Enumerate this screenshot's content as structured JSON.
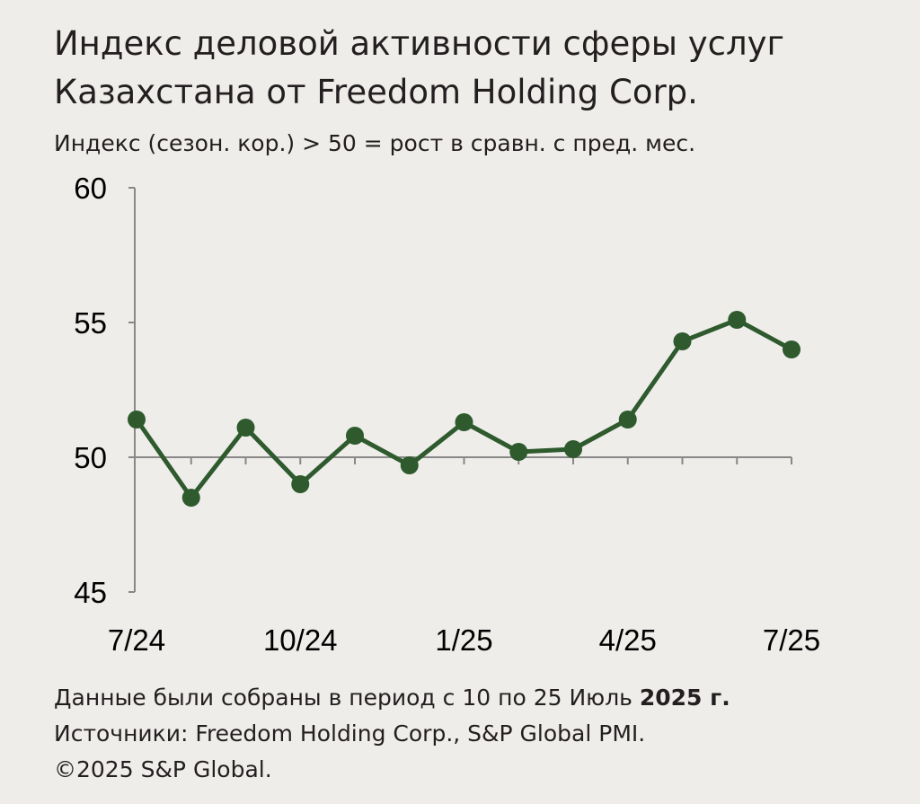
{
  "header": {
    "title_line1": "Индекс деловой активности сферы услуг",
    "title_line2": "Казахстана от Freedom Holding Corp.",
    "subtitle": "Индекс (сезон. кор.) > 50 = рост в сравн. с пред. мес."
  },
  "footer": {
    "note_text": "Данные были собраны в период с 10 по 25 Июль ",
    "note_bold": "2025 г.",
    "sources": "Источники: Freedom Holding Corp., S&P Global PMI.",
    "copyright": "©2025 S&P Global."
  },
  "colors": {
    "line": "#2e5a2e",
    "axis": "#888888",
    "background": "#efedea"
  },
  "chart_data": {
    "type": "line",
    "title": "Индекс деловой активности сферы услуг Казахстана от Freedom Holding Corp.",
    "subtitle": "Индекс (сезон. кор.) > 50 = рост в сравн. с пред. мес.",
    "categories": [
      "7/24",
      "8/24",
      "9/24",
      "10/24",
      "11/24",
      "12/24",
      "1/25",
      "2/25",
      "3/25",
      "4/25",
      "5/25",
      "6/25",
      "7/25"
    ],
    "x_tick_labels": [
      "7/24",
      "10/24",
      "1/25",
      "4/25",
      "7/25"
    ],
    "series": [
      {
        "values": [
          51.4,
          48.5,
          51.1,
          49.0,
          50.8,
          49.7,
          51.3,
          50.2,
          50.3,
          51.4,
          54.3,
          55.1,
          54.0
        ]
      }
    ],
    "y_ticks": [
      45,
      50,
      55,
      60
    ],
    "ylim": [
      45,
      60
    ],
    "reference_line": 50,
    "grid": false,
    "legend": "none"
  }
}
